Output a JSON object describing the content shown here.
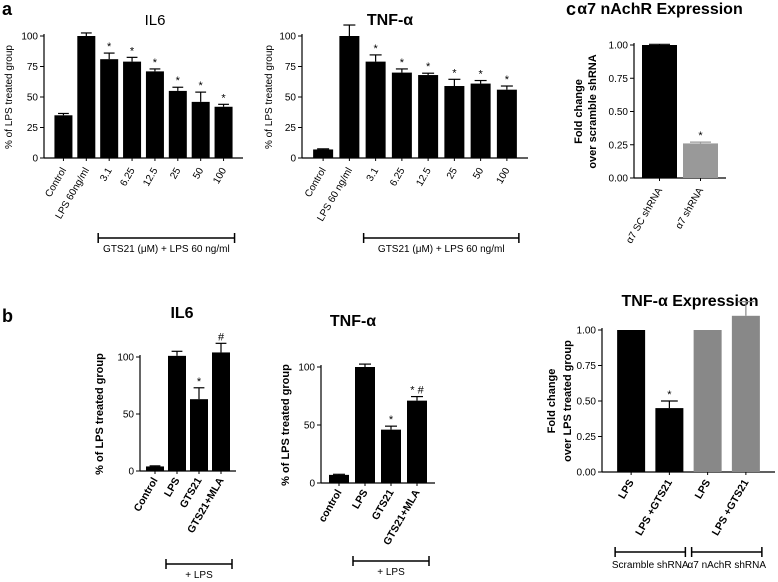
{
  "panel_labels": [
    "a",
    "b",
    "c"
  ],
  "chart_data": [
    {
      "id": "a_il6",
      "type": "bar",
      "title": "IL6",
      "ylabel": "% of LPS treated group",
      "ylim": [
        0,
        100
      ],
      "yticks": [
        0,
        25,
        50,
        75,
        100
      ],
      "categories": [
        "Control",
        "LPS 60ng/ml",
        "3.1",
        "6.25",
        "12.5",
        "25",
        "50",
        "100"
      ],
      "values": [
        35,
        100,
        81,
        79,
        71,
        55,
        46,
        42
      ],
      "errors": [
        1.5,
        2.5,
        5,
        3.5,
        2,
        3,
        8,
        2
      ],
      "markers": [
        "",
        "",
        "*",
        "*",
        "*",
        "*",
        "*",
        "*"
      ],
      "colors": [
        "#000000",
        "#000000",
        "#000000",
        "#000000",
        "#000000",
        "#000000",
        "#000000",
        "#000000"
      ],
      "groups": [
        {
          "label": "GTS21 (μM) + LPS 60 ng/ml",
          "from": 2,
          "to": 7
        }
      ]
    },
    {
      "id": "a_tnf",
      "type": "bar",
      "title": "TNF-α",
      "ylabel": "% of LPS treated group",
      "ylim": [
        0,
        100
      ],
      "yticks": [
        0,
        25,
        50,
        75,
        100
      ],
      "categories": [
        "Control",
        "LPS 60 ng/ml",
        "3.1",
        "6.25",
        "12.5",
        "25",
        "50",
        "100"
      ],
      "values": [
        7,
        100,
        79,
        70,
        68,
        59,
        61,
        56
      ],
      "errors": [
        0.5,
        9,
        5.5,
        3,
        1.5,
        5.5,
        2.5,
        3
      ],
      "markers": [
        "",
        "",
        "*",
        "*",
        "*",
        "*",
        "*",
        "*"
      ],
      "colors": [
        "#000000",
        "#000000",
        "#000000",
        "#000000",
        "#000000",
        "#000000",
        "#000000",
        "#000000"
      ],
      "groups": [
        {
          "label": "GTS21 (μM) + LPS 60 ng/ml",
          "from": 2,
          "to": 7
        }
      ]
    },
    {
      "id": "c_a7",
      "type": "bar",
      "title": "α7 nAchR Expression",
      "ylabel": [
        "Fold change",
        "over scramble shRNA"
      ],
      "ylim": [
        0,
        1
      ],
      "yticks": [
        "0.00",
        "0.25",
        "0.50",
        "0.75",
        "1.00"
      ],
      "categories": [
        "α7 SC shRNA",
        "α7 shRNA"
      ],
      "values": [
        1.0,
        0.26
      ],
      "errors": [
        0.005,
        0.01
      ],
      "markers": [
        "",
        "*"
      ],
      "colors": [
        "#000000",
        "#999999"
      ],
      "groups": []
    },
    {
      "id": "b_il6",
      "type": "bar",
      "title": "IL6",
      "ylabel": "% of LPS treated group",
      "ylim": [
        0,
        100
      ],
      "yticks": [
        0,
        50,
        100
      ],
      "categories": [
        "Control",
        "LPS",
        "GTS21",
        "GTS21+MLA"
      ],
      "values": [
        4,
        101,
        63,
        104
      ],
      "errors": [
        0.5,
        4,
        10,
        8
      ],
      "markers": [
        "",
        "",
        "*",
        "#"
      ],
      "colors": [
        "#000000",
        "#000000",
        "#000000",
        "#000000"
      ],
      "groups": [
        {
          "label": "+ LPS",
          "from": 1,
          "to": 3
        }
      ]
    },
    {
      "id": "b_tnf",
      "type": "bar",
      "title": "TNF-α",
      "ylabel": "% of LPS treated group",
      "ylim": [
        0,
        100
      ],
      "yticks": [
        0,
        50,
        100
      ],
      "categories": [
        "control",
        "LPS",
        "GTS21",
        "GTS21+MLA"
      ],
      "values": [
        7,
        100,
        46,
        71
      ],
      "errors": [
        0.5,
        2.5,
        3,
        3.5
      ],
      "markers": [
        "",
        "",
        "*",
        "* #"
      ],
      "colors": [
        "#000000",
        "#000000",
        "#000000",
        "#000000"
      ],
      "groups": [
        {
          "label": "+ LPS",
          "from": 1,
          "to": 3
        }
      ]
    },
    {
      "id": "c_tnf",
      "type": "bar",
      "title": "TNF-α Expression",
      "ylabel": [
        "Fold change",
        "over LPS treated group"
      ],
      "ylim": [
        0,
        1
      ],
      "yticks": [
        "0.00",
        "0.25",
        "0.50",
        "0.75",
        "1.00"
      ],
      "categories": [
        "LPS",
        "LPS +GTS21",
        "LPS",
        "LPS +GTS21"
      ],
      "values": [
        1.0,
        0.45,
        1.0,
        1.1
      ],
      "errors": [
        0,
        0.05,
        0,
        0.1
      ],
      "markers": [
        "",
        "*",
        "",
        ""
      ],
      "colors": [
        "#000000",
        "#000000",
        "#888888",
        "#888888"
      ],
      "groups": [
        {
          "label": "Scramble shRNA",
          "from": 0,
          "to": 1
        },
        {
          "label": "α7 nAchR shRNA",
          "from": 2,
          "to": 3
        }
      ]
    }
  ]
}
